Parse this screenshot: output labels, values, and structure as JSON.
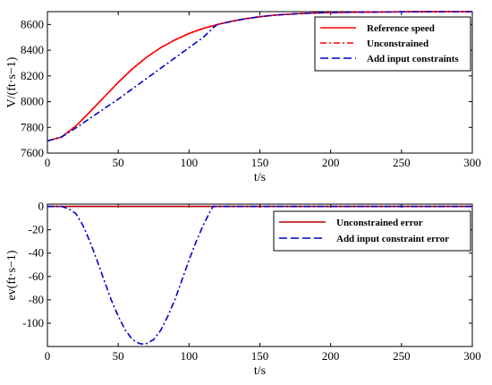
{
  "chart_data": [
    {
      "type": "line",
      "xlabel": "t/s",
      "ylabel": "V/(ft·s−1)",
      "xlim": [
        0,
        300
      ],
      "ylim": [
        7600,
        8700
      ],
      "xticks": [
        "0",
        "50",
        "100",
        "150",
        "200",
        "250",
        "300"
      ],
      "yticks": [
        "7600",
        "7800",
        "8000",
        "8200",
        "8400",
        "8600"
      ],
      "grid": false,
      "legend_position": "top-right",
      "series": [
        {
          "name": "Reference speed",
          "color": "#ff0000",
          "style": "solid",
          "x": [
            0,
            10,
            20,
            30,
            40,
            50,
            60,
            70,
            80,
            90,
            100,
            110,
            120,
            130,
            140,
            150,
            160,
            170,
            180,
            190,
            200,
            220,
            240,
            260,
            280,
            300
          ],
          "y": [
            7695,
            7725,
            7810,
            7920,
            8035,
            8150,
            8255,
            8345,
            8420,
            8480,
            8530,
            8570,
            8600,
            8625,
            8645,
            8660,
            8672,
            8680,
            8686,
            8690,
            8693,
            8696,
            8698,
            8699,
            8700,
            8700
          ]
        },
        {
          "name": "Unconstrained",
          "color": "#ff0000",
          "style": "dashdot",
          "x": [
            0,
            10,
            20,
            30,
            40,
            50,
            60,
            70,
            80,
            90,
            100,
            110,
            120,
            130,
            140,
            150,
            160,
            170,
            180,
            190,
            200,
            220,
            240,
            260,
            280,
            300
          ],
          "y": [
            7695,
            7725,
            7810,
            7920,
            8035,
            8150,
            8255,
            8345,
            8420,
            8480,
            8530,
            8570,
            8600,
            8625,
            8645,
            8660,
            8672,
            8680,
            8686,
            8690,
            8693,
            8696,
            8698,
            8699,
            8700,
            8700
          ]
        },
        {
          "name": "Add input constraints",
          "color": "#0000cc",
          "style": "dashdot",
          "x": [
            0,
            10,
            20,
            30,
            40,
            50,
            60,
            70,
            80,
            90,
            100,
            110,
            117,
            120,
            130,
            140,
            150,
            160,
            170,
            180,
            190,
            200,
            220,
            240,
            260,
            280,
            300
          ],
          "y": [
            7695,
            7725,
            7795,
            7870,
            7945,
            8020,
            8100,
            8180,
            8260,
            8340,
            8420,
            8500,
            8575,
            8600,
            8625,
            8645,
            8660,
            8672,
            8680,
            8686,
            8690,
            8693,
            8696,
            8698,
            8699,
            8700,
            8700
          ]
        }
      ]
    },
    {
      "type": "line",
      "xlabel": "t/s",
      "ylabel": "ev(ft·s−1)",
      "xlim": [
        0,
        300
      ],
      "ylim": [
        -120,
        2
      ],
      "xticks": [
        "0",
        "50",
        "100",
        "150",
        "200",
        "250",
        "300"
      ],
      "yticks": [
        "-100",
        "-80",
        "-60",
        "-40",
        "-20",
        "0"
      ],
      "grid": false,
      "legend_position": "top-right",
      "series": [
        {
          "name": "Unconstrained error",
          "color": "#b30000",
          "style": "solid",
          "x": [
            0,
            50,
            100,
            150,
            200,
            250,
            300
          ],
          "y": [
            0,
            0,
            0,
            0,
            0,
            0,
            0
          ]
        },
        {
          "name": "Add input constraint error",
          "color": "#0000cc",
          "style": "dashdot",
          "x": [
            0,
            10,
            15,
            20,
            25,
            30,
            35,
            40,
            45,
            50,
            55,
            60,
            65,
            68,
            70,
            75,
            80,
            85,
            90,
            95,
            100,
            105,
            110,
            115,
            117,
            150,
            200,
            250,
            300
          ],
          "y": [
            0,
            0,
            -2,
            -6,
            -16,
            -30,
            -46,
            -63,
            -80,
            -94,
            -106,
            -114,
            -117.5,
            -118,
            -117.5,
            -114,
            -106,
            -94,
            -80,
            -63,
            -46,
            -30,
            -16,
            -4,
            0,
            0,
            0,
            0,
            0
          ]
        }
      ]
    }
  ]
}
